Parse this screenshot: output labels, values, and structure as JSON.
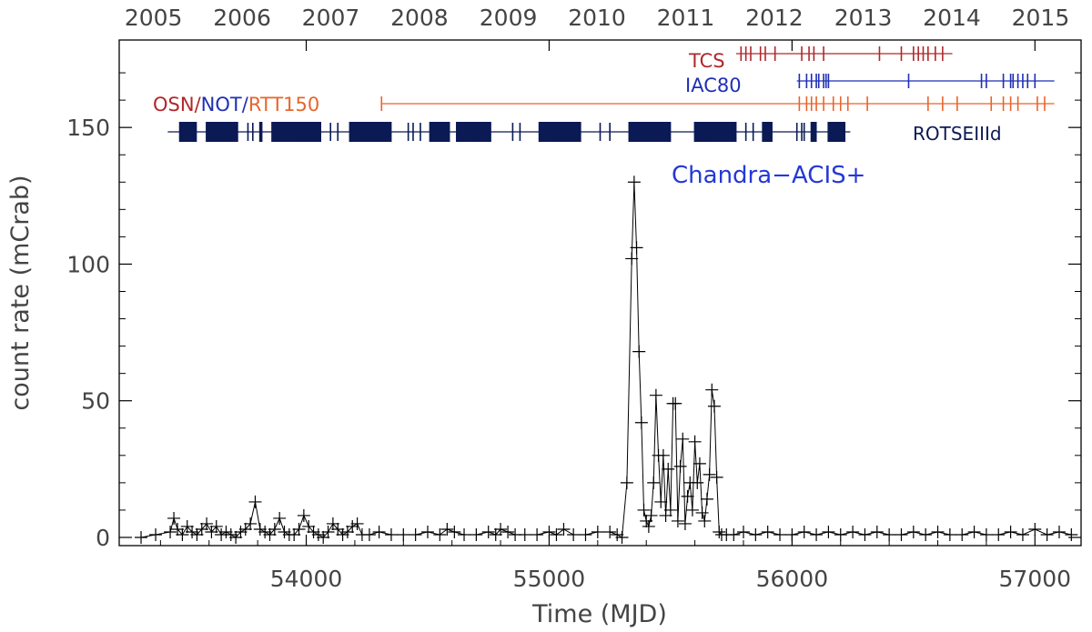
{
  "chart_data": {
    "type": "scatter",
    "xlabel": "Time (MJD)",
    "ylabel": "count rate (mCrab)",
    "xlim": [
      53230,
      57190
    ],
    "ylim": [
      -3,
      182
    ],
    "x_ticks": [
      54000,
      55000,
      56000,
      57000
    ],
    "y_ticks": [
      0,
      50,
      100,
      150
    ],
    "top_axis_years": [
      "2005",
      "2006",
      "2007",
      "2008",
      "2009",
      "2010",
      "2011",
      "2012",
      "2013",
      "2014",
      "2015"
    ],
    "top_axis_mjd": [
      53371,
      53736,
      54101,
      54466,
      54832,
      55197,
      55562,
      55927,
      56293,
      56658,
      57023
    ],
    "colors": {
      "axis": "#000000",
      "light_curve": "#000000",
      "tcs": "#b0282a",
      "iac80": "#1f2fb5",
      "osn": "#b0282a",
      "not": "#1f2fb5",
      "rtt150": "#e8652c",
      "rotse": "#0b1a55",
      "chandra": "#2438d6"
    },
    "labels": {
      "tcs": "TCS",
      "iac80": "IAC80",
      "osn": "OSN",
      "sep1": "/",
      "not": "NOT",
      "sep2": "/",
      "rtt150": "RTT150",
      "rotse": "ROTSEIIId",
      "chandra": "Chandra−ACIS+"
    },
    "series": [
      {
        "name": "light curve",
        "x": [
          53320,
          53380,
          53440,
          53455,
          53470,
          53490,
          53510,
          53530,
          53550,
          53570,
          53590,
          53610,
          53630,
          53650,
          53670,
          53690,
          53710,
          53730,
          53750,
          53770,
          53790,
          53810,
          53830,
          53850,
          53870,
          53890,
          53910,
          53930,
          53950,
          53970,
          53990,
          54010,
          54030,
          54050,
          54070,
          54090,
          54110,
          54130,
          54150,
          54170,
          54190,
          54210,
          54230,
          54260,
          54300,
          54350,
          54400,
          54450,
          54500,
          54550,
          54580,
          54610,
          54650,
          54700,
          54750,
          54780,
          54800,
          54830,
          54860,
          54900,
          54950,
          55000,
          55030,
          55060,
          55100,
          55150,
          55200,
          55250,
          55280,
          55300,
          55320,
          55340,
          55350,
          55360,
          55370,
          55380,
          55390,
          55400,
          55410,
          55420,
          55430,
          55440,
          55450,
          55460,
          55470,
          55480,
          55490,
          55500,
          55510,
          55520,
          55530,
          55540,
          55550,
          55560,
          55570,
          55580,
          55590,
          55600,
          55610,
          55620,
          55630,
          55640,
          55650,
          55660,
          55670,
          55680,
          55690,
          55700,
          55710,
          55730,
          55760,
          55800,
          55850,
          55900,
          55950,
          56000,
          56050,
          56100,
          56150,
          56200,
          56250,
          56300,
          56350,
          56400,
          56450,
          56500,
          56550,
          56600,
          56650,
          56700,
          56750,
          56800,
          56850,
          56900,
          56950,
          57000,
          57050,
          57100,
          57150
        ],
        "y": [
          0,
          1,
          2,
          7,
          3,
          1,
          4,
          2,
          1,
          3,
          5,
          2,
          4,
          1,
          2,
          1,
          0,
          2,
          3,
          5,
          13,
          3,
          2,
          1,
          3,
          7,
          2,
          1,
          1,
          3,
          8,
          4,
          2,
          1,
          0,
          2,
          5,
          3,
          1,
          2,
          4,
          5,
          1,
          1,
          2,
          1,
          1,
          1,
          2,
          1,
          3,
          2,
          1,
          1,
          2,
          1,
          3,
          2,
          1,
          1,
          1,
          2,
          1,
          3,
          1,
          1,
          2,
          2,
          1,
          0,
          20,
          102,
          130,
          106,
          68,
          42,
          10,
          6,
          4,
          8,
          20,
          52,
          30,
          13,
          30,
          8,
          25,
          10,
          49,
          49,
          6,
          26,
          36,
          5,
          15,
          20,
          10,
          35,
          20,
          27,
          9,
          6,
          14,
          23,
          54,
          48,
          22,
          2,
          1,
          1,
          1,
          2,
          1,
          2,
          1,
          1,
          2,
          1,
          2,
          1,
          2,
          1,
          2,
          1,
          1,
          2,
          1,
          2,
          1,
          1,
          2,
          1,
          1,
          2,
          1,
          3,
          1,
          2,
          1
        ]
      }
    ],
    "campaigns": {
      "tcs": {
        "range": [
          55770,
          56660
        ],
        "ticks": [
          55790,
          55810,
          55830,
          55870,
          55890,
          55930,
          56040,
          56070,
          56090,
          56130,
          56360,
          56450,
          56500,
          56520,
          56540,
          56560,
          56590,
          56620
        ]
      },
      "iac80": {
        "range": [
          56020,
          57080
        ],
        "ticks": [
          56030,
          56060,
          56080,
          56100,
          56110,
          56130,
          56140,
          56150,
          56480,
          56780,
          56800,
          56870,
          56900,
          56910,
          56930,
          56950,
          56970,
          57000
        ]
      },
      "osn_not_rtt150": {
        "range": [
          54310,
          57080
        ],
        "ticks": [
          54310,
          56030,
          56060,
          56080,
          56100,
          56130,
          56170,
          56200,
          56230,
          56310,
          56560,
          56620,
          56680,
          56820,
          56870,
          56900,
          56930,
          57010,
          57040
        ]
      },
      "rotse": {
        "range": [
          53430,
          56240
        ]
      },
      "rotse_clusters": [
        [
          53480,
          53550
        ],
        [
          53590,
          53720
        ],
        [
          53810,
          53820
        ],
        [
          53860,
          54060
        ],
        [
          54180,
          54350
        ],
        [
          54510,
          54590
        ],
        [
          54620,
          54760
        ],
        [
          54960,
          55130
        ],
        [
          55330,
          55500
        ],
        [
          55600,
          55770
        ],
        [
          55880,
          55920
        ],
        [
          56080,
          56100
        ],
        [
          56150,
          56220
        ]
      ],
      "rotse_isolated": [
        53760,
        53780,
        54100,
        54130,
        54420,
        54440,
        54470,
        54850,
        54880,
        55210,
        55250,
        55810,
        55840,
        56020,
        56040,
        56050
      ]
    }
  }
}
